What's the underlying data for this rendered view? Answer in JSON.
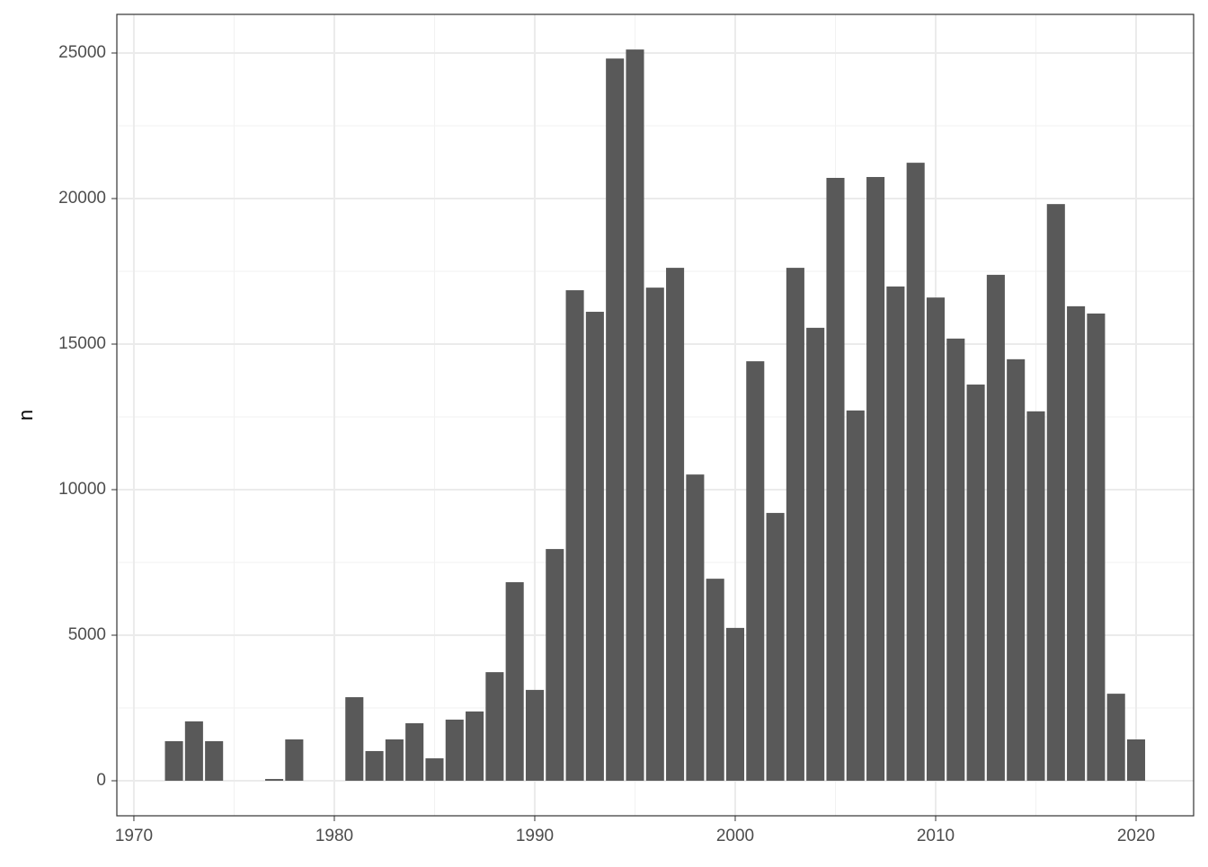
{
  "chart_data": {
    "type": "bar",
    "y_label": "n",
    "x": [
      1972,
      1973,
      1974,
      1977,
      1978,
      1981,
      1982,
      1983,
      1984,
      1985,
      1986,
      1987,
      1988,
      1989,
      1990,
      1991,
      1992,
      1993,
      1994,
      1995,
      1996,
      1997,
      1998,
      1999,
      2000,
      2001,
      2002,
      2003,
      2004,
      2005,
      2006,
      2007,
      2008,
      2009,
      2010,
      2011,
      2012,
      2013,
      2014,
      2015,
      2016,
      2017,
      2018,
      2019,
      2020
    ],
    "values": [
      1360,
      2040,
      1360,
      60,
      1420,
      2870,
      1020,
      1420,
      1975,
      770,
      2100,
      2380,
      3730,
      6820,
      3120,
      7960,
      16850,
      16110,
      24810,
      25120,
      16940,
      17620,
      10520,
      6940,
      5250,
      14410,
      9200,
      17620,
      15560,
      20710,
      12720,
      20740,
      16980,
      21230,
      16600,
      15190,
      13610,
      17380,
      14480,
      12690,
      19810,
      16300,
      16050,
      2990,
      1420
    ],
    "color": "#595959",
    "xlim": [
      1969.15,
      2022.87
    ],
    "xticks": [
      1970,
      1980,
      1990,
      2000,
      2010,
      2020
    ],
    "xminor": [
      1975,
      1985,
      1995,
      2005,
      2015
    ],
    "ylim": [
      -1204,
      26327
    ],
    "yticks": [
      0,
      5000,
      10000,
      15000,
      20000,
      25000
    ],
    "yminor": [
      2500,
      7500,
      12500,
      17500,
      22500
    ],
    "grid": true,
    "bar_width": 0.9
  }
}
